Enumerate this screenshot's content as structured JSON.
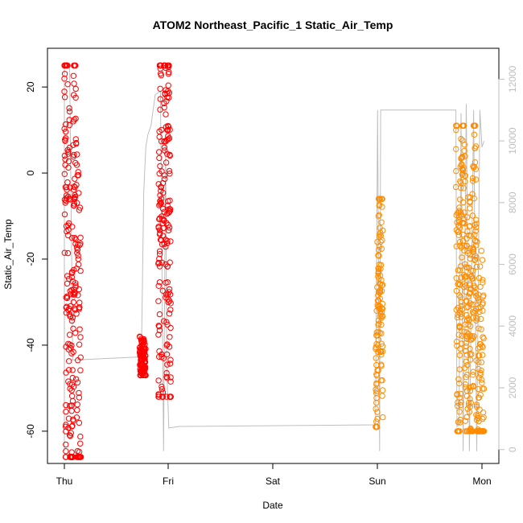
{
  "chart_data": {
    "type": "scatter",
    "title": "ATOM2 Northeast_Pacific_1 Static_Air_Temp",
    "xlabel": "Date",
    "ylabel": "Static_Air_Temp",
    "x_ticks": [
      "Thu",
      "Fri",
      "Sat",
      "Sun",
      "Mon"
    ],
    "xlim": [
      "Thu",
      "Mon"
    ],
    "ylim": [
      -67.5,
      29
    ],
    "y_ticks": [
      -60,
      -40,
      -20,
      0,
      20
    ],
    "y2_ticks": [
      0,
      2000,
      4000,
      6000,
      8000,
      10000,
      12000
    ],
    "y2lim": [
      -450,
      13000
    ],
    "grid": false,
    "colors": {
      "flight1": "#ff0000",
      "flight2": "#ff8c00",
      "altitude_line": "#bebebe",
      "axis": "#000000"
    },
    "series": [
      {
        "marker": "open-circle",
        "color": "#ff0000",
        "axis": "left",
        "segments": [
          {
            "x": [
              0.0,
              0.16
            ],
            "y_min": -66,
            "y_max": 25,
            "profile": [
              [
                0.0,
                23
              ],
              [
                0.01,
                12
              ],
              [
                0.015,
                -56
              ],
              [
                0.02,
                8
              ],
              [
                0.03,
                14
              ],
              [
                0.04,
                -40
              ],
              [
                0.05,
                -20
              ],
              [
                0.06,
                -66
              ],
              [
                0.07,
                -55
              ],
              [
                0.08,
                -50
              ],
              [
                0.09,
                -5
              ],
              [
                0.1,
                6
              ],
              [
                0.11,
                0
              ],
              [
                0.12,
                -30
              ],
              [
                0.14,
                -45
              ],
              [
                0.16,
                -48
              ]
            ]
          },
          {
            "x": [
              0.72,
              0.78
            ],
            "y_min": -47,
            "y_max": -38,
            "profile": [
              [
                0.72,
                -38
              ],
              [
                0.73,
                -47
              ],
              [
                0.74,
                -40
              ],
              [
                0.75,
                -46
              ],
              [
                0.76,
                -42
              ],
              [
                0.78,
                -45
              ]
            ]
          },
          {
            "x": [
              0.9,
              1.02
            ],
            "y_min": -52,
            "y_max": 25,
            "profile": [
              [
                0.9,
                -45
              ],
              [
                0.92,
                22
              ],
              [
                0.94,
                -45
              ],
              [
                0.96,
                25
              ],
              [
                0.98,
                -20
              ],
              [
                1.0,
                11
              ],
              [
                1.02,
                -52
              ]
            ]
          }
        ]
      },
      {
        "marker": "open-circle",
        "color": "#ff8c00",
        "axis": "left",
        "segments": [
          {
            "x": [
              2.98,
              3.05
            ],
            "y_min": -59,
            "y_max": -6,
            "profile": [
              [
                2.98,
                -50
              ],
              [
                2.99,
                -59
              ],
              [
                3.0,
                -30
              ],
              [
                3.01,
                -20
              ],
              [
                3.02,
                -6
              ],
              [
                3.03,
                -40
              ],
              [
                3.04,
                -20
              ],
              [
                3.05,
                -35
              ]
            ]
          },
          {
            "x": [
              3.75,
              4.02
            ],
            "y_min": -60,
            "y_max": 11,
            "profile": [
              [
                3.75,
                9
              ],
              [
                3.77,
                -47
              ],
              [
                3.8,
                -20
              ],
              [
                3.82,
                11
              ],
              [
                3.85,
                -45
              ],
              [
                3.88,
                -30
              ],
              [
                3.9,
                -50
              ],
              [
                3.93,
                2
              ],
              [
                3.96,
                -60
              ],
              [
                3.99,
                -49
              ],
              [
                4.02,
                -52
              ]
            ]
          }
        ]
      }
    ],
    "altitude_line": {
      "axis": "right",
      "color": "#bebebe",
      "points": [
        [
          0.0,
          -50
        ],
        [
          0.0,
          12400
        ],
        [
          0.05,
          12400
        ],
        [
          0.08,
          2900
        ],
        [
          0.72,
          3000
        ],
        [
          0.74,
          3500
        ],
        [
          0.76,
          8300
        ],
        [
          0.78,
          9800
        ],
        [
          0.8,
          10200
        ],
        [
          0.83,
          10500
        ],
        [
          0.87,
          11500
        ],
        [
          0.92,
          11600
        ],
        [
          0.95,
          -50
        ],
        [
          0.97,
          10200
        ],
        [
          0.98,
          2700
        ],
        [
          1.0,
          700
        ],
        [
          1.1,
          750
        ],
        [
          2.98,
          800
        ],
        [
          3.0,
          11000
        ],
        [
          3.02,
          -50
        ],
        [
          3.03,
          11000
        ],
        [
          3.75,
          11000
        ],
        [
          3.76,
          750
        ],
        [
          3.78,
          800
        ],
        [
          3.8,
          10900
        ],
        [
          3.82,
          -50
        ],
        [
          3.85,
          11200
        ],
        [
          3.88,
          -50
        ],
        [
          3.92,
          11000
        ],
        [
          3.95,
          -50
        ],
        [
          3.98,
          11000
        ],
        [
          4.0,
          9800
        ],
        [
          4.02,
          10000
        ]
      ]
    }
  }
}
